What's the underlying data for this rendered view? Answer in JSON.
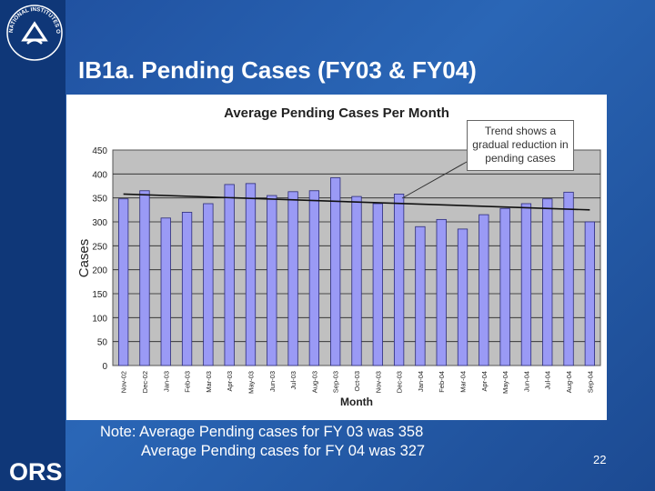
{
  "slide": {
    "title": "IB1a. Pending Cases (FY03 & FY04)",
    "note_line1": "Note: Average Pending cases for FY 03 was 358",
    "note_line2": "Average Pending cases for FY 04 was 327",
    "page_number": "22",
    "logo_text": "ORS",
    "seal_text": "NATIONAL INSTITUTES OF HEALTH"
  },
  "chart_data": {
    "type": "bar",
    "title": "Average Pending Cases Per Month",
    "xlabel": "Month",
    "ylabel": "Cases",
    "ylim": [
      0,
      450
    ],
    "yticks": [
      0,
      50,
      100,
      150,
      200,
      250,
      300,
      350,
      400,
      450
    ],
    "categories": [
      "Nov-02",
      "Dec-02",
      "Jan-03",
      "Feb-03",
      "Mar-03",
      "Apr-03",
      "May-03",
      "Jun-03",
      "Jul-03",
      "Aug-03",
      "Sep-03",
      "Oct-03",
      "Nov-03",
      "Dec-03",
      "Jan-04",
      "Feb-04",
      "Mar-04",
      "Apr-04",
      "May-04",
      "Jun-04",
      "Jul-04",
      "Aug-04",
      "Sep-04"
    ],
    "values": [
      348,
      365,
      308,
      320,
      338,
      378,
      380,
      355,
      363,
      365,
      392,
      353,
      338,
      358,
      290,
      305,
      285,
      315,
      328,
      338,
      348,
      362,
      300
    ],
    "trendline": {
      "start": 358,
      "end": 325
    },
    "annotation": "Trend shows a gradual reduction in pending cases",
    "grid": true,
    "colors": {
      "bar": "#9a9af5",
      "bar_edge": "#2b2b7a",
      "plot_bg": "#c0c0c0",
      "trend": "#111111"
    }
  }
}
